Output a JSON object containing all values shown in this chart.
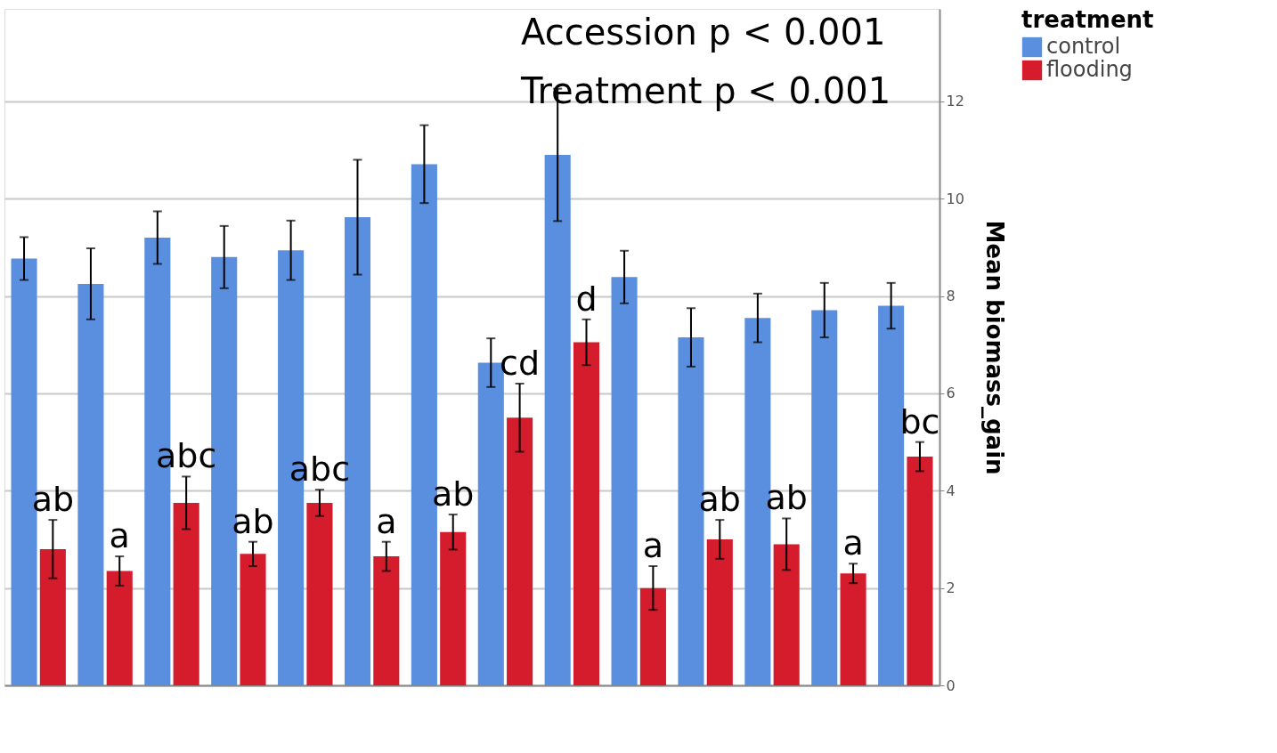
{
  "chart_data": {
    "type": "bar",
    "ylabel": "Mean biomass_gain",
    "legend_title": "treatment",
    "legend": "top right",
    "grid": "y",
    "tick_labels": "y",
    "annotations": [
      "Accession p < 0.001",
      "Treatment p < 0.001"
    ],
    "categories": [
      null,
      null,
      null,
      null,
      null,
      null,
      null,
      null,
      null,
      null,
      null,
      null,
      null,
      null
    ],
    "ylim": [
      0,
      13.9
    ],
    "yticks": [
      0,
      2,
      4,
      6,
      8,
      10,
      12
    ],
    "series": [
      {
        "name": "control",
        "color": "#5a8fe0",
        "values": [
          8.77,
          8.25,
          9.2,
          8.8,
          8.94,
          9.62,
          10.71,
          6.63,
          10.9,
          8.39,
          7.15,
          7.55,
          7.71,
          7.8
        ],
        "errors": [
          0.44,
          0.73,
          0.54,
          0.64,
          0.61,
          1.18,
          0.8,
          0.5,
          1.36,
          0.54,
          0.6,
          0.5,
          0.56,
          0.47
        ]
      },
      {
        "name": "flooding",
        "color": "#d41c2c",
        "values": [
          2.8,
          2.35,
          3.75,
          2.7,
          3.75,
          2.65,
          3.15,
          5.5,
          7.05,
          2.0,
          3.0,
          2.9,
          2.3,
          4.7
        ],
        "errors": [
          0.6,
          0.3,
          0.54,
          0.25,
          0.27,
          0.3,
          0.36,
          0.7,
          0.47,
          0.45,
          0.4,
          0.53,
          0.2,
          0.3
        ],
        "value_labels": [
          "ab",
          "a",
          "abc",
          "ab",
          "abc",
          "a",
          "ab",
          "cd",
          "d",
          "a",
          "ab",
          "ab",
          "a",
          "bc"
        ]
      }
    ]
  }
}
